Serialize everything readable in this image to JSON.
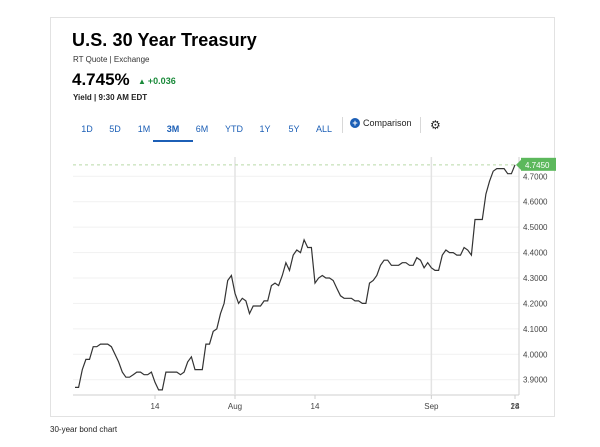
{
  "header": {
    "title": "U.S. 30 Year Treasury",
    "subtitle": "RT Quote | Exchange",
    "price": "4.745%",
    "change": "+0.036",
    "time": "Yield | 9:30 AM EDT"
  },
  "tabs": [
    "1D",
    "5D",
    "1M",
    "3M",
    "6M",
    "YTD",
    "1Y",
    "5Y",
    "ALL"
  ],
  "active_tab": "3M",
  "comparison_label": "Comparison",
  "icons": {
    "plus": "plus-circle-icon",
    "gear": "gear-icon",
    "arrow": "triangle-up-icon"
  },
  "colors": {
    "accent": "#1c5fb6",
    "up": "#1a8a3a",
    "last_badge": "#5cb85c",
    "line": "#333333"
  },
  "caption": "30-year bond chart",
  "chart_data": {
    "type": "line",
    "title": "",
    "xlabel": "",
    "ylabel": "",
    "x_ticks": [
      "14",
      "Aug",
      "14",
      "Sep",
      "14",
      "28"
    ],
    "y_ticks": [
      "3.9000",
      "4.0000",
      "4.1000",
      "4.2000",
      "4.3000",
      "4.4000",
      "4.5000",
      "4.6000",
      "4.7000"
    ],
    "ylim": [
      3.84,
      4.76
    ],
    "last_value_label": "4.7450",
    "last_value": 4.745,
    "grid": "vertical at month starts, horizontal faint",
    "series": [
      {
        "values": [
          3.87,
          3.87,
          3.94,
          3.98,
          3.98,
          4.03,
          4.03,
          4.04,
          4.04,
          4.04,
          4.03,
          4.0,
          3.97,
          3.93,
          3.91,
          3.91,
          3.92,
          3.93,
          3.93,
          3.92,
          3.92,
          3.93,
          3.89,
          3.86,
          3.86,
          3.93,
          3.93,
          3.93,
          3.93,
          3.92,
          3.93,
          3.97,
          3.99,
          3.94,
          3.94,
          3.94,
          4.04,
          4.04,
          4.09,
          4.1,
          4.16,
          4.2,
          4.29,
          4.31,
          4.24,
          4.2,
          4.22,
          4.21,
          4.16,
          4.19,
          4.19,
          4.19,
          4.21,
          4.21,
          4.27,
          4.28,
          4.27,
          4.31,
          4.36,
          4.33,
          4.39,
          4.41,
          4.4,
          4.45,
          4.42,
          4.42,
          4.28,
          4.3,
          4.31,
          4.3,
          4.3,
          4.29,
          4.26,
          4.23,
          4.22,
          4.22,
          4.22,
          4.21,
          4.21,
          4.2,
          4.2,
          4.28,
          4.29,
          4.31,
          4.35,
          4.37,
          4.37,
          4.35,
          4.35,
          4.35,
          4.36,
          4.36,
          4.35,
          4.35,
          4.38,
          4.37,
          4.34,
          4.36,
          4.34,
          4.33,
          4.33,
          4.39,
          4.41,
          4.4,
          4.4,
          4.39,
          4.39,
          4.42,
          4.41,
          4.39,
          4.53,
          4.53,
          4.53,
          4.63,
          4.68,
          4.72,
          4.73,
          4.73,
          4.73,
          4.71,
          4.71,
          4.745
        ]
      }
    ]
  }
}
